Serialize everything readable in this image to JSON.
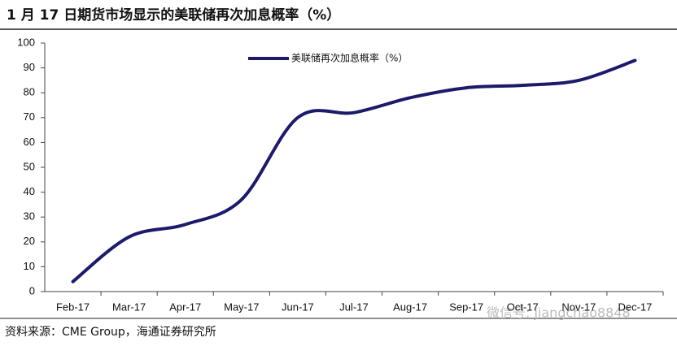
{
  "chart_data": {
    "type": "line",
    "title": "1 月 17 日期货市场显示的美联储再次加息概率（%）",
    "source": "资料来源：CME Group，海通证券研究所",
    "watermark": "微信号: jiangchao8848",
    "categories": [
      "Feb-17",
      "Mar-17",
      "Apr-17",
      "May-17",
      "Jun-17",
      "Jul-17",
      "Aug-17",
      "Sep-17",
      "Oct-17",
      "Nov-17",
      "Dec-17"
    ],
    "series": [
      {
        "name": "美联储再次加息概率（%）",
        "color": "#1c1a6b",
        "values": [
          4,
          22,
          27,
          37,
          70,
          72,
          78,
          82,
          83,
          85,
          93
        ]
      }
    ],
    "ylim": [
      0,
      100
    ],
    "yticks": [
      0,
      10,
      20,
      30,
      40,
      50,
      60,
      70,
      80,
      90,
      100
    ],
    "grid": false,
    "smooth": true
  }
}
